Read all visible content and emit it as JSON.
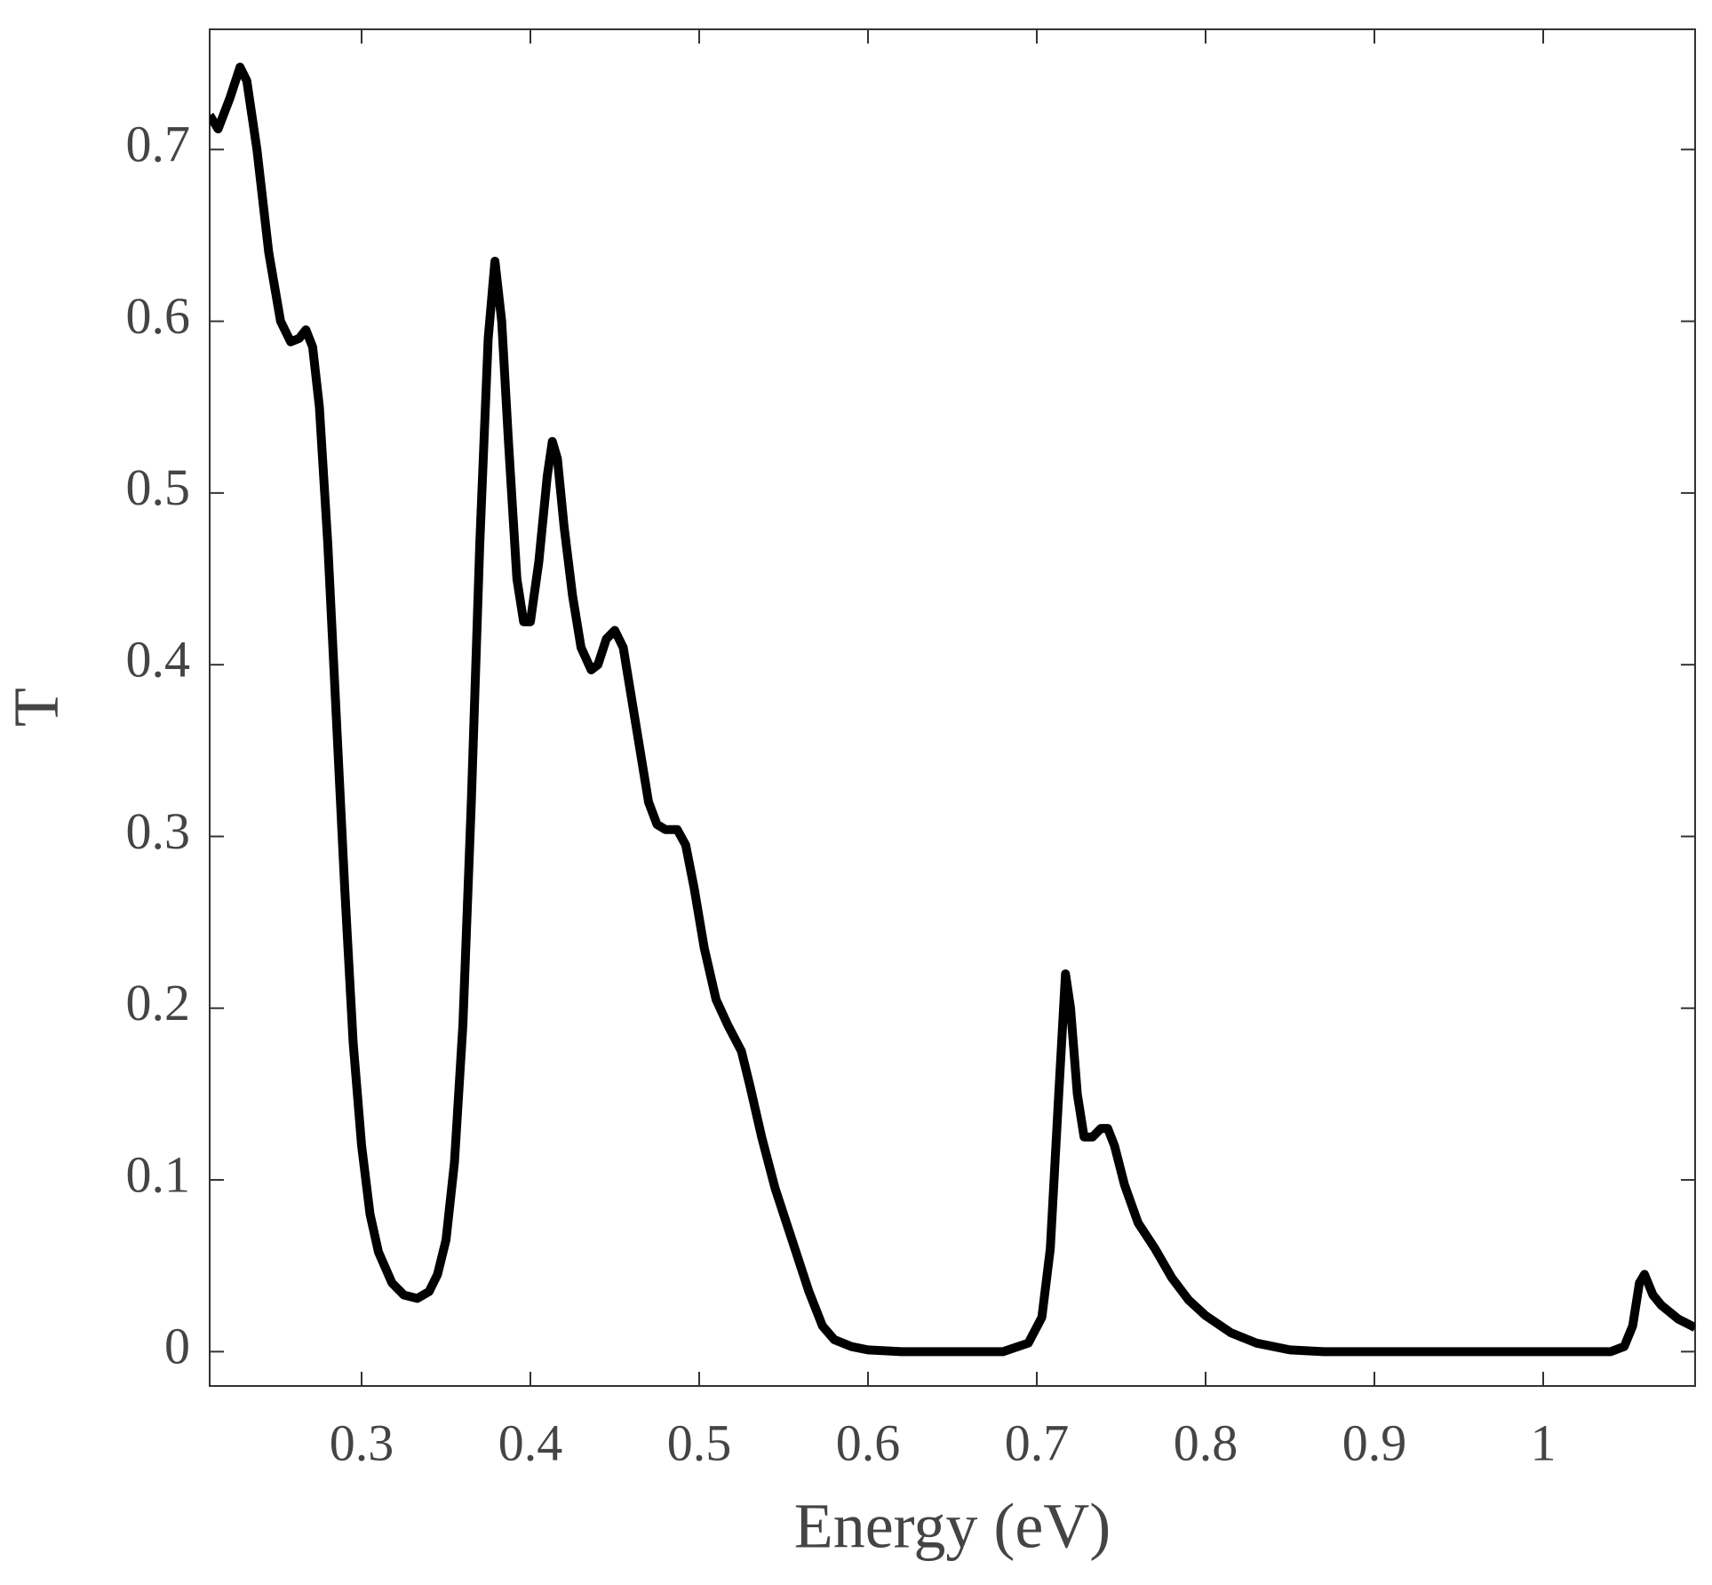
{
  "chart_data": {
    "type": "line",
    "xlabel": "Energy (eV)",
    "ylabel": "T",
    "xlim": [
      0.21,
      1.09
    ],
    "ylim": [
      -0.02,
      0.77
    ],
    "xticks": [
      0.3,
      0.4,
      0.5,
      0.6,
      0.7,
      0.8,
      0.9,
      1
    ],
    "yticks": [
      0,
      0.1,
      0.2,
      0.3,
      0.4,
      0.5,
      0.6,
      0.7
    ],
    "grid": false,
    "series": [
      {
        "color": "#000000",
        "x": [
          0.21,
          0.215,
          0.222,
          0.228,
          0.232,
          0.238,
          0.245,
          0.252,
          0.258,
          0.263,
          0.267,
          0.271,
          0.275,
          0.28,
          0.285,
          0.29,
          0.295,
          0.3,
          0.305,
          0.31,
          0.318,
          0.325,
          0.333,
          0.34,
          0.345,
          0.35,
          0.355,
          0.36,
          0.365,
          0.37,
          0.375,
          0.379,
          0.383,
          0.387,
          0.392,
          0.396,
          0.4,
          0.405,
          0.41,
          0.413,
          0.416,
          0.42,
          0.425,
          0.43,
          0.436,
          0.44,
          0.445,
          0.45,
          0.455,
          0.46,
          0.465,
          0.47,
          0.475,
          0.48,
          0.487,
          0.492,
          0.497,
          0.503,
          0.51,
          0.517,
          0.525,
          0.53,
          0.537,
          0.545,
          0.555,
          0.565,
          0.573,
          0.58,
          0.59,
          0.6,
          0.62,
          0.68,
          0.695,
          0.703,
          0.708,
          0.713,
          0.717,
          0.72,
          0.724,
          0.728,
          0.733,
          0.738,
          0.742,
          0.746,
          0.752,
          0.76,
          0.77,
          0.78,
          0.79,
          0.8,
          0.815,
          0.83,
          0.85,
          0.87,
          1.04,
          1.048,
          1.053,
          1.057,
          1.06,
          1.065,
          1.07,
          1.08,
          1.09
        ],
        "values": [
          0.72,
          0.712,
          0.73,
          0.748,
          0.74,
          0.7,
          0.64,
          0.6,
          0.588,
          0.59,
          0.595,
          0.585,
          0.55,
          0.47,
          0.37,
          0.27,
          0.18,
          0.12,
          0.08,
          0.058,
          0.04,
          0.033,
          0.031,
          0.035,
          0.045,
          0.065,
          0.11,
          0.19,
          0.32,
          0.47,
          0.59,
          0.635,
          0.6,
          0.53,
          0.45,
          0.425,
          0.425,
          0.46,
          0.51,
          0.53,
          0.52,
          0.48,
          0.44,
          0.41,
          0.397,
          0.4,
          0.415,
          0.42,
          0.41,
          0.38,
          0.35,
          0.32,
          0.307,
          0.304,
          0.304,
          0.295,
          0.27,
          0.235,
          0.205,
          0.19,
          0.175,
          0.155,
          0.125,
          0.095,
          0.065,
          0.035,
          0.015,
          0.007,
          0.003,
          0.001,
          0,
          0,
          0.005,
          0.02,
          0.06,
          0.15,
          0.22,
          0.2,
          0.15,
          0.125,
          0.125,
          0.13,
          0.13,
          0.12,
          0.097,
          0.075,
          0.06,
          0.043,
          0.03,
          0.021,
          0.011,
          0.005,
          0.001,
          0,
          0,
          0.003,
          0.015,
          0.04,
          0.045,
          0.033,
          0.027,
          0.019,
          0.014
        ]
      }
    ]
  }
}
